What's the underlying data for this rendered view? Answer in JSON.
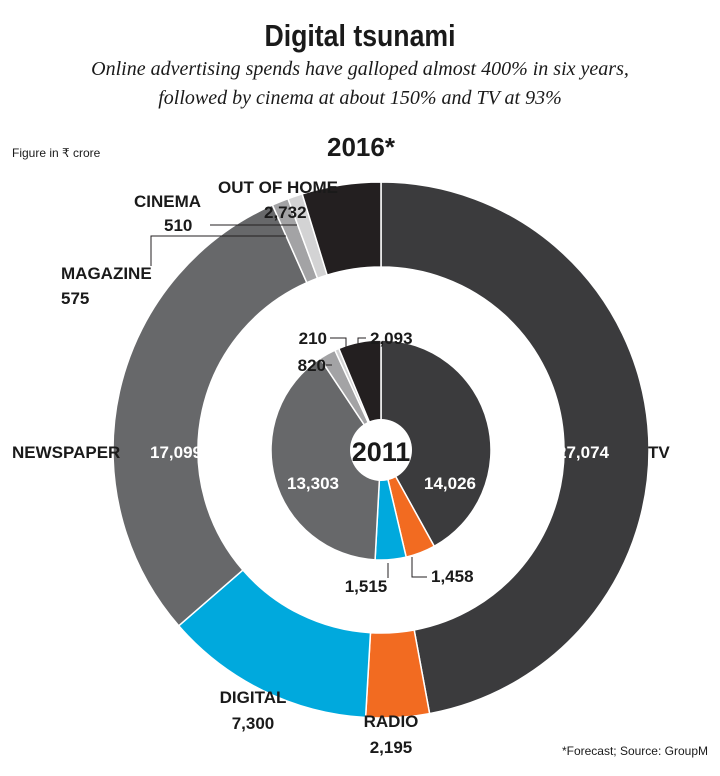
{
  "header": {
    "title": "Digital tsunami",
    "subtitle_line1": "Online advertising spends have galloped almost 400% in six years,",
    "subtitle_line2": "followed by cinema at about 150% and TV at 93%"
  },
  "unit_note": "Figure in ₹ crore",
  "footnote": "*Forecast; Source: GroupM",
  "colors": {
    "tv": "#3b3b3d",
    "radio": "#f26b21",
    "digital": "#00a9dd",
    "newspaper": "#67686a",
    "magazine": "#a3a3a5",
    "cinema": "#d3d3d4",
    "out_of_home": "#231f20"
  },
  "chart_data": {
    "type": "pie",
    "rings": [
      {
        "year_label": "2016*",
        "slices": [
          {
            "name": "TV",
            "value": 27074,
            "value_label": "27,074",
            "color": "#3b3b3d"
          },
          {
            "name": "RADIO",
            "value": 2195,
            "value_label": "2,195",
            "color": "#f26b21"
          },
          {
            "name": "DIGITAL",
            "value": 7300,
            "value_label": "7,300",
            "color": "#00a9dd"
          },
          {
            "name": "NEWSPAPER",
            "value": 17099,
            "value_label": "17,099",
            "color": "#67686a"
          },
          {
            "name": "MAGAZINE",
            "value": 575,
            "value_label": "575",
            "color": "#a3a3a5"
          },
          {
            "name": "CINEMA",
            "value": 510,
            "value_label": "510",
            "color": "#d3d3d4"
          },
          {
            "name": "OUT OF HOME",
            "value": 2732,
            "value_label": "2,732",
            "color": "#231f20"
          }
        ]
      },
      {
        "year_label": "2011",
        "slices": [
          {
            "name": "TV",
            "value": 14026,
            "value_label": "14,026",
            "color": "#3b3b3d"
          },
          {
            "name": "RADIO",
            "value": 1458,
            "value_label": "1,458",
            "color": "#f26b21"
          },
          {
            "name": "DIGITAL",
            "value": 1515,
            "value_label": "1,515",
            "color": "#00a9dd"
          },
          {
            "name": "NEWSPAPER",
            "value": 13303,
            "value_label": "13,303",
            "color": "#67686a"
          },
          {
            "name": "MAGAZINE",
            "value": 820,
            "value_label": "820",
            "color": "#a3a3a5"
          },
          {
            "name": "CINEMA",
            "value": 210,
            "value_label": "210",
            "color": "#d3d3d4"
          },
          {
            "name": "OUT OF HOME",
            "value": 2093,
            "value_label": "2,093",
            "color": "#231f20"
          }
        ]
      }
    ]
  }
}
